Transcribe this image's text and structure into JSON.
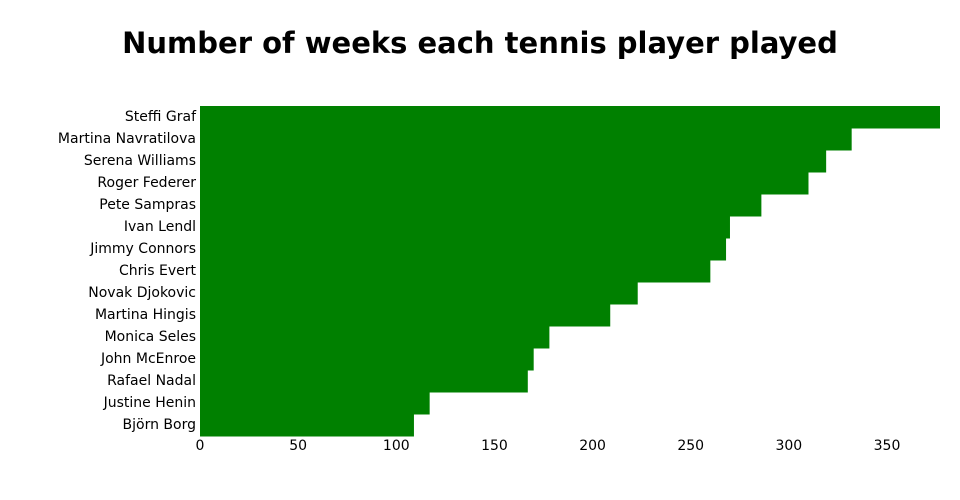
{
  "chart_data": {
    "type": "bar",
    "orientation": "horizontal",
    "title": "Number of weeks each tennis player played",
    "categories": [
      "Steffi Graf",
      "Martina Navratilova",
      "Serena Williams",
      "Roger Federer",
      "Pete Sampras",
      "Ivan Lendl",
      "Jimmy Connors",
      "Chris Evert",
      "Novak Djokovic",
      "Martina Hingis",
      "Monica Seles",
      "John McEnroe",
      "Rafael Nadal",
      "Justine Henin",
      "Björn Borg"
    ],
    "values": [
      377,
      332,
      319,
      310,
      286,
      270,
      268,
      260,
      223,
      209,
      178,
      170,
      167,
      117,
      109
    ],
    "color": "#008000",
    "xlim": [
      0,
      377
    ],
    "xticks": [
      0,
      50,
      100,
      150,
      200,
      250,
      300,
      350
    ],
    "grid": false
  }
}
